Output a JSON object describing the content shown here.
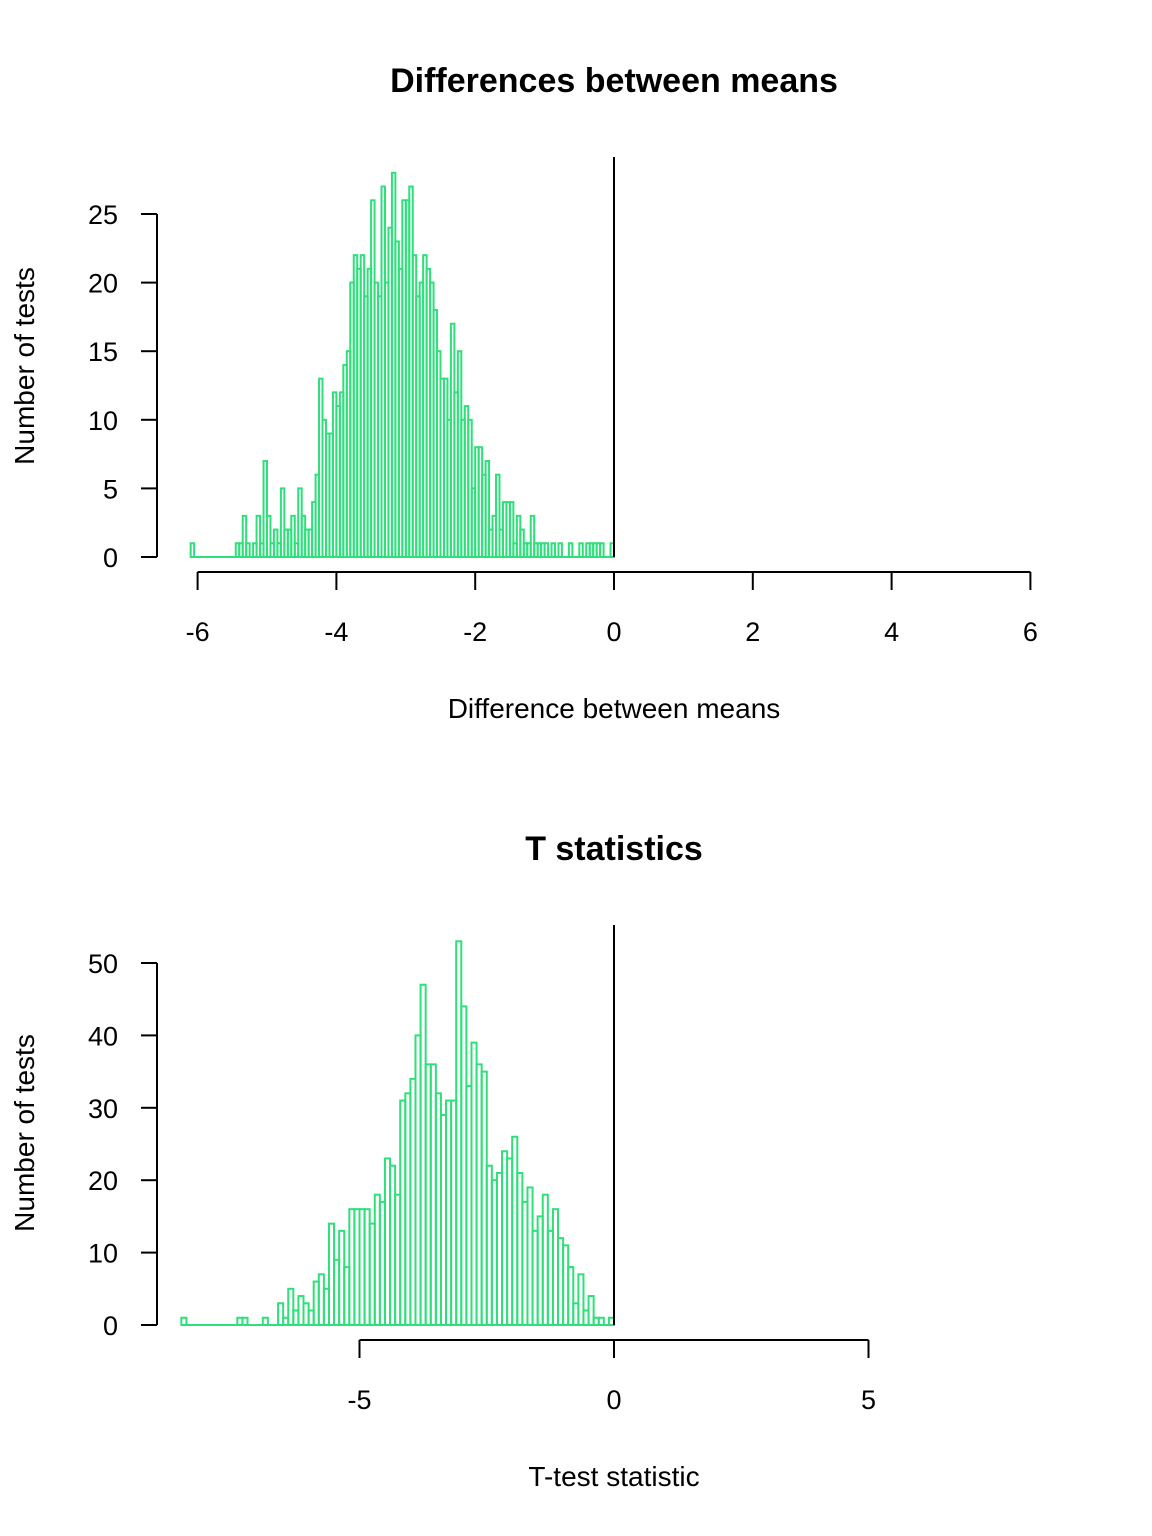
{
  "chart_data": [
    {
      "type": "bar",
      "title": "Differences between means",
      "xlabel": "Difference between means",
      "ylabel": "Number of tests",
      "xlim": [
        -6,
        6
      ],
      "ylim": [
        0,
        28
      ],
      "x_ticks": [
        -6,
        -4,
        -2,
        0,
        2,
        4,
        6
      ],
      "y_ticks": [
        0,
        5,
        10,
        15,
        20,
        25
      ],
      "bin_width": 0.05,
      "color": "#2EE07A",
      "grid": false,
      "reference_line_x": 0,
      "bins_start": [
        -6.1,
        -5.45,
        -5.4,
        -5.35,
        -5.3,
        -5.25,
        -5.2,
        -5.15,
        -5.1,
        -5.05,
        -5.0,
        -4.95,
        -4.9,
        -4.85,
        -4.8,
        -4.75,
        -4.7,
        -4.65,
        -4.6,
        -4.55,
        -4.5,
        -4.45,
        -4.4,
        -4.35,
        -4.3,
        -4.25,
        -4.2,
        -4.15,
        -4.1,
        -4.05,
        -4.0,
        -3.95,
        -3.9,
        -3.85,
        -3.8,
        -3.75,
        -3.7,
        -3.65,
        -3.6,
        -3.55,
        -3.5,
        -3.45,
        -3.4,
        -3.35,
        -3.3,
        -3.25,
        -3.2,
        -3.15,
        -3.1,
        -3.05,
        -3.0,
        -2.95,
        -2.9,
        -2.85,
        -2.8,
        -2.75,
        -2.7,
        -2.65,
        -2.6,
        -2.55,
        -2.5,
        -2.45,
        -2.4,
        -2.35,
        -2.3,
        -2.25,
        -2.2,
        -2.15,
        -2.1,
        -2.05,
        -2.0,
        -1.95,
        -1.9,
        -1.85,
        -1.8,
        -1.75,
        -1.7,
        -1.65,
        -1.6,
        -1.55,
        -1.5,
        -1.45,
        -1.4,
        -1.35,
        -1.3,
        -1.25,
        -1.2,
        -1.15,
        -1.1,
        -1.05,
        -1.0,
        -0.95,
        -0.9,
        -0.85,
        -0.8,
        -0.75,
        -0.7,
        -0.65,
        -0.6,
        -0.55,
        -0.5,
        -0.45,
        -0.4,
        -0.35,
        -0.3,
        -0.25,
        -0.2,
        -0.15,
        -0.1,
        -0.05
      ],
      "counts": [
        1,
        1,
        1,
        3,
        1,
        0,
        1,
        3,
        1,
        7,
        3,
        1,
        2,
        1,
        5,
        2,
        2,
        3,
        1,
        5,
        3,
        2,
        2,
        4,
        6,
        13,
        10,
        9,
        9,
        12,
        11,
        12,
        14,
        15,
        20,
        22,
        21,
        22,
        19,
        21,
        26,
        20,
        19,
        27,
        20,
        24,
        28,
        23,
        21,
        26,
        26,
        27,
        22,
        19,
        20,
        22,
        21,
        20,
        18,
        15,
        13,
        13,
        10,
        17,
        12,
        15,
        10,
        11,
        10,
        5,
        8,
        8,
        6,
        7,
        2,
        3,
        6,
        2,
        4,
        4,
        4,
        1,
        3,
        2,
        1,
        1,
        3,
        1,
        1,
        1,
        1,
        0,
        1,
        0,
        1,
        0,
        0,
        1,
        0,
        0,
        1,
        0,
        1,
        1,
        1,
        1,
        1,
        0,
        0,
        1
      ]
    },
    {
      "type": "bar",
      "title": "T statistics",
      "xlabel": "T-test statistic",
      "ylabel": "Number of tests",
      "xlim": [
        -5,
        5
      ],
      "ylim": [
        0,
        53
      ],
      "x_ticks": [
        -5,
        0,
        5
      ],
      "y_ticks": [
        0,
        10,
        20,
        30,
        40,
        50
      ],
      "bin_width": 0.1,
      "color": "#2EE07A",
      "grid": false,
      "reference_line_x": 0,
      "bins_start": [
        -8.5,
        -7.4,
        -7.3,
        -6.9,
        -6.6,
        -6.5,
        -6.4,
        -6.3,
        -6.2,
        -6.1,
        -6.0,
        -5.9,
        -5.8,
        -5.7,
        -5.6,
        -5.5,
        -5.4,
        -5.3,
        -5.2,
        -5.1,
        -5.0,
        -4.9,
        -4.8,
        -4.7,
        -4.6,
        -4.5,
        -4.4,
        -4.3,
        -4.2,
        -4.1,
        -4.0,
        -3.9,
        -3.8,
        -3.7,
        -3.6,
        -3.5,
        -3.4,
        -3.3,
        -3.2,
        -3.1,
        -3.0,
        -2.9,
        -2.8,
        -2.7,
        -2.6,
        -2.5,
        -2.4,
        -2.3,
        -2.2,
        -2.1,
        -2.0,
        -1.9,
        -1.8,
        -1.7,
        -1.6,
        -1.5,
        -1.4,
        -1.3,
        -1.2,
        -1.1,
        -1.0,
        -0.9,
        -0.8,
        -0.7,
        -0.6,
        -0.5,
        -0.4,
        -0.3,
        -0.2,
        -0.1
      ],
      "counts": [
        1,
        1,
        1,
        1,
        3,
        1,
        5,
        2,
        4,
        3,
        2,
        6,
        7,
        5,
        14,
        9,
        13,
        8,
        16,
        16,
        16,
        16,
        14,
        18,
        17,
        23,
        22,
        18,
        31,
        32,
        34,
        40,
        47,
        36,
        36,
        32,
        29,
        31,
        31,
        53,
        44,
        33,
        39,
        36,
        35,
        22,
        20,
        21,
        24,
        23,
        26,
        21,
        17,
        19,
        13,
        15,
        18,
        13,
        16,
        12,
        11,
        8,
        3,
        7,
        2,
        4,
        1,
        1,
        0,
        1
      ]
    }
  ]
}
